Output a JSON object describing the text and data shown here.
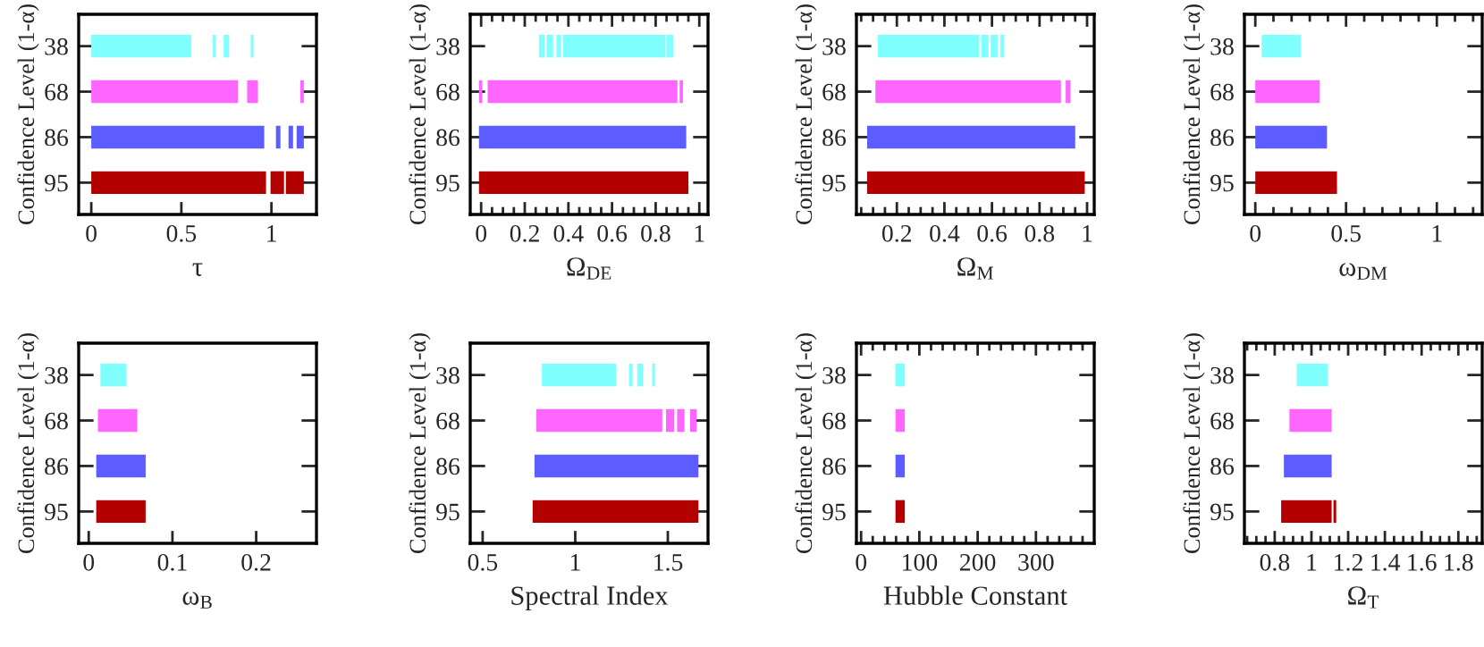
{
  "chart_data": [
    {
      "type": "bar",
      "orientation": "horizontal",
      "xlabel": "τ",
      "ylabel": "Confidence Level (1-α)",
      "categories": [
        "38",
        "68",
        "86",
        "95"
      ],
      "xlim": [
        -0.07,
        1.25
      ],
      "xticks": [
        0,
        0.5,
        1
      ],
      "grid": false,
      "legend": false,
      "series": [
        {
          "base": [
            0,
            0,
            0,
            0
          ],
          "values": [
            0.555,
            0.815,
            0.96,
            0.97
          ],
          "colors": [
            "#80ffff",
            "#ff66ff",
            "#5c5cff",
            "#b30000"
          ]
        },
        {
          "base": [
            0.675,
            0.865,
            1.025,
            0.995
          ],
          "values": [
            0.015,
            0.06,
            0.025,
            0.075
          ],
          "colors": [
            "#80ffff",
            "#ff66ff",
            "#5c5cff",
            "#b30000"
          ]
        },
        {
          "base": [
            0.735,
            1.16,
            1.095,
            1.08
          ],
          "values": [
            0.03,
            0.02,
            0.025,
            0.1
          ],
          "colors": [
            "#80ffff",
            "#ff66ff",
            "#5c5cff",
            "#b30000"
          ]
        },
        {
          "base": [
            0.885,
            null,
            1.14,
            null
          ],
          "values": [
            0.015,
            null,
            0.04,
            null
          ],
          "colors": [
            "#80ffff",
            "#ff66ff",
            "#5c5cff",
            "#b30000"
          ]
        }
      ]
    },
    {
      "type": "bar",
      "orientation": "horizontal",
      "xlabel": "Ω$_{DE}$",
      "ylabel": "Confidence Level (1-α)",
      "categories": [
        "38",
        "68",
        "86",
        "95"
      ],
      "xlim": [
        -0.05,
        1.04
      ],
      "xticks": [
        0,
        {
          "value": 0.05,
          "label": null
        },
        {
          "value": 0.1,
          "label": null
        },
        {
          "value": 0.15,
          "label": null
        },
        0.2,
        {
          "value": 0.25,
          "label": null
        },
        {
          "value": 0.3,
          "label": null
        },
        {
          "value": 0.35,
          "label": null
        },
        0.4,
        {
          "value": 0.45,
          "label": null
        },
        {
          "value": 0.5,
          "label": null
        },
        {
          "value": 0.55,
          "label": null
        },
        0.6,
        {
          "value": 0.65,
          "label": null
        },
        {
          "value": 0.7,
          "label": null
        },
        {
          "value": 0.75,
          "label": null
        },
        0.8,
        {
          "value": 0.85,
          "label": null
        },
        {
          "value": 0.9,
          "label": null
        },
        {
          "value": 0.95,
          "label": null
        },
        1
      ],
      "grid": false,
      "legend": false,
      "series": [
        {
          "base": [
            0.265,
            -0.01,
            -0.01,
            -0.01
          ],
          "values": [
            0.025,
            0.015,
            0.95,
            0.96
          ],
          "colors": [
            "#80ffff",
            "#ff66ff",
            "#5c5cff",
            "#b30000"
          ]
        },
        {
          "base": [
            0.3,
            0.03,
            null,
            null
          ],
          "values": [
            0.03,
            0.87,
            null,
            null
          ],
          "colors": [
            "#80ffff",
            "#ff66ff",
            "#5c5cff",
            "#b30000"
          ]
        },
        {
          "base": [
            0.345,
            0.91,
            null,
            null
          ],
          "values": [
            0.02,
            0.015,
            null,
            null
          ],
          "colors": [
            "#80ffff",
            "#ff66ff",
            "#5c5cff",
            "#b30000"
          ]
        },
        {
          "base": [
            0.375,
            null,
            null,
            null
          ],
          "values": [
            0.47,
            null,
            null,
            null
          ],
          "colors": [
            "#80ffff",
            "#ff66ff",
            "#5c5cff",
            "#b30000"
          ]
        },
        {
          "base": [
            0.85,
            null,
            null,
            null
          ],
          "values": [
            0.03,
            null,
            null,
            null
          ],
          "colors": [
            "#80ffff",
            "#ff66ff",
            "#5c5cff",
            "#b30000"
          ]
        }
      ]
    },
    {
      "type": "bar",
      "orientation": "horizontal",
      "xlabel": "Ω$_{M}$",
      "ylabel": "Confidence Level (1-α)",
      "categories": [
        "38",
        "68",
        "86",
        "95"
      ],
      "xlim": [
        0.03,
        1.03
      ],
      "xticks": [
        {
          "value": 0.05,
          "label": null
        },
        {
          "value": 0.1,
          "label": null
        },
        {
          "value": 0.15,
          "label": null
        },
        0.2,
        {
          "value": 0.25,
          "label": null
        },
        {
          "value": 0.3,
          "label": null
        },
        {
          "value": 0.35,
          "label": null
        },
        0.4,
        {
          "value": 0.45,
          "label": null
        },
        {
          "value": 0.5,
          "label": null
        },
        {
          "value": 0.55,
          "label": null
        },
        0.6,
        {
          "value": 0.65,
          "label": null
        },
        {
          "value": 0.7,
          "label": null
        },
        {
          "value": 0.75,
          "label": null
        },
        0.8,
        {
          "value": 0.85,
          "label": null
        },
        {
          "value": 0.9,
          "label": null
        },
        {
          "value": 0.95,
          "label": null
        },
        1
      ],
      "grid": false,
      "legend": false,
      "series": [
        {
          "base": [
            0.12,
            0.11,
            0.075,
            0.075
          ],
          "values": [
            0.425,
            0.78,
            0.875,
            0.915
          ],
          "colors": [
            "#80ffff",
            "#ff66ff",
            "#5c5cff",
            "#b30000"
          ]
        },
        {
          "base": [
            0.555,
            0.91,
            null,
            null
          ],
          "values": [
            0.03,
            0.02,
            null,
            null
          ],
          "colors": [
            "#80ffff",
            "#ff66ff",
            "#5c5cff",
            "#b30000"
          ]
        },
        {
          "base": [
            0.595,
            null,
            null,
            null
          ],
          "values": [
            0.03,
            null,
            null,
            null
          ],
          "colors": [
            "#80ffff",
            "#ff66ff",
            "#5c5cff",
            "#b30000"
          ]
        },
        {
          "base": [
            0.635,
            null,
            null,
            null
          ],
          "values": [
            0.015,
            null,
            null,
            null
          ],
          "colors": [
            "#80ffff",
            "#ff66ff",
            "#5c5cff",
            "#b30000"
          ]
        }
      ]
    },
    {
      "type": "bar",
      "orientation": "horizontal",
      "xlabel": "ω$_{DM}$",
      "ylabel": "Confidence Level (1-α)",
      "categories": [
        "38",
        "68",
        "86",
        "95"
      ],
      "xlim": [
        -0.06,
        1.25
      ],
      "xticks": [
        0,
        {
          "value": 0.1,
          "label": null
        },
        {
          "value": 0.2,
          "label": null
        },
        {
          "value": 0.3,
          "label": null
        },
        {
          "value": 0.4,
          "label": null
        },
        0.5,
        {
          "value": 0.6,
          "label": null
        },
        {
          "value": 0.7,
          "label": null
        },
        {
          "value": 0.8,
          "label": null
        },
        {
          "value": 0.9,
          "label": null
        },
        1,
        {
          "value": 1.1,
          "label": null
        },
        {
          "value": 1.2,
          "label": null
        }
      ],
      "grid": false,
      "legend": false,
      "series": [
        {
          "base": [
            0.035,
            0,
            0,
            0
          ],
          "values": [
            0.215,
            0.355,
            0.395,
            0.45
          ],
          "colors": [
            "#80ffff",
            "#ff66ff",
            "#5c5cff",
            "#b30000"
          ]
        }
      ]
    },
    {
      "type": "bar",
      "orientation": "horizontal",
      "xlabel": "ω$_{B}$",
      "ylabel": "Confidence Level (1-α)",
      "categories": [
        "38",
        "68",
        "86",
        "95"
      ],
      "xlim": [
        -0.012,
        0.272
      ],
      "xticks": [
        0,
        0.1,
        0.2
      ],
      "grid": false,
      "legend": false,
      "series": [
        {
          "base": [
            0.014,
            0.011,
            0.009,
            0.009
          ],
          "values": [
            0.031,
            0.047,
            0.059,
            0.059
          ],
          "colors": [
            "#80ffff",
            "#ff66ff",
            "#5c5cff",
            "#b30000"
          ]
        }
      ]
    },
    {
      "type": "bar",
      "orientation": "horizontal",
      "xlabel": "Spectral Index",
      "ylabel": "Confidence Level (1-α)",
      "categories": [
        "38",
        "68",
        "86",
        "95"
      ],
      "xlim": [
        0.433,
        1.717
      ],
      "xticks": [
        0.5,
        1,
        1.5
      ],
      "grid": false,
      "legend": false,
      "series": [
        {
          "base": [
            0.82,
            0.79,
            0.78,
            0.77
          ],
          "values": [
            0.4,
            0.68,
            0.885,
            0.895
          ],
          "colors": [
            "#80ffff",
            "#ff66ff",
            "#5c5cff",
            "#b30000"
          ]
        },
        {
          "base": [
            1.29,
            1.49,
            null,
            null
          ],
          "values": [
            0.02,
            0.045,
            null,
            null
          ],
          "colors": [
            "#80ffff",
            "#ff66ff",
            "#5c5cff",
            "#b30000"
          ]
        },
        {
          "base": [
            1.335,
            1.55,
            null,
            null
          ],
          "values": [
            0.03,
            0.04,
            null,
            null
          ],
          "colors": [
            "#80ffff",
            "#ff66ff",
            "#5c5cff",
            "#b30000"
          ]
        },
        {
          "base": [
            1.415,
            1.62,
            null,
            null
          ],
          "values": [
            0.015,
            0.035,
            null,
            null
          ],
          "colors": [
            "#80ffff",
            "#ff66ff",
            "#5c5cff",
            "#b30000"
          ]
        }
      ]
    },
    {
      "type": "bar",
      "orientation": "horizontal",
      "xlabel": "Hubble Constant",
      "ylabel": "Confidence Level (1-α)",
      "categories": [
        "38",
        "68",
        "86",
        "95"
      ],
      "xlim": [
        -8,
        400
      ],
      "xticks": [
        0,
        {
          "value": 20,
          "label": null
        },
        {
          "value": 40,
          "label": null
        },
        {
          "value": 60,
          "label": null
        },
        {
          "value": 80,
          "label": null
        },
        100,
        {
          "value": 120,
          "label": null
        },
        {
          "value": 140,
          "label": null
        },
        {
          "value": 160,
          "label": null
        },
        {
          "value": 180,
          "label": null
        },
        200,
        {
          "value": 220,
          "label": null
        },
        {
          "value": 240,
          "label": null
        },
        {
          "value": 260,
          "label": null
        },
        {
          "value": 280,
          "label": null
        },
        300,
        {
          "value": 320,
          "label": null
        },
        {
          "value": 340,
          "label": null
        },
        {
          "value": 360,
          "label": null
        },
        {
          "value": 380,
          "label": null
        }
      ],
      "grid": false,
      "legend": false,
      "series": [
        {
          "base": [
            59,
            59,
            59,
            59
          ],
          "values": [
            16,
            16,
            16,
            16
          ],
          "colors": [
            "#80ffff",
            "#ff66ff",
            "#5c5cff",
            "#b30000"
          ]
        }
      ]
    },
    {
      "type": "bar",
      "orientation": "horizontal",
      "xlabel": "Ω$_{T}$",
      "ylabel": "Confidence Level (1-α)",
      "categories": [
        "38",
        "68",
        "86",
        "95"
      ],
      "xlim": [
        0.635,
        1.93
      ],
      "xticks": [
        {
          "value": 0.65,
          "label": null
        },
        {
          "value": 0.7,
          "label": null
        },
        {
          "value": 0.75,
          "label": null
        },
        0.8,
        {
          "value": 0.85,
          "label": null
        },
        {
          "value": 0.9,
          "label": null
        },
        {
          "value": 0.95,
          "label": null
        },
        1,
        {
          "value": 1.05,
          "label": null
        },
        {
          "value": 1.1,
          "label": null
        },
        {
          "value": 1.15,
          "label": null
        },
        1.2,
        {
          "value": 1.25,
          "label": null
        },
        {
          "value": 1.3,
          "label": null
        },
        {
          "value": 1.35,
          "label": null
        },
        1.4,
        {
          "value": 1.45,
          "label": null
        },
        {
          "value": 1.5,
          "label": null
        },
        {
          "value": 1.55,
          "label": null
        },
        1.6,
        {
          "value": 1.65,
          "label": null
        },
        {
          "value": 1.7,
          "label": null
        },
        {
          "value": 1.75,
          "label": null
        },
        1.8,
        {
          "value": 1.85,
          "label": null
        },
        {
          "value": 1.9,
          "label": null
        }
      ],
      "grid": false,
      "legend": false,
      "series": [
        {
          "base": [
            0.92,
            0.88,
            0.85,
            0.835
          ],
          "values": [
            0.17,
            0.23,
            0.26,
            0.275
          ],
          "colors": [
            "#80ffff",
            "#ff66ff",
            "#5c5cff",
            "#b30000"
          ]
        },
        {
          "base": [
            null,
            null,
            null,
            1.12
          ],
          "values": [
            null,
            null,
            null,
            0.015
          ],
          "colors": [
            "#80ffff",
            "#ff66ff",
            "#5c5cff",
            "#b30000"
          ]
        }
      ]
    }
  ]
}
